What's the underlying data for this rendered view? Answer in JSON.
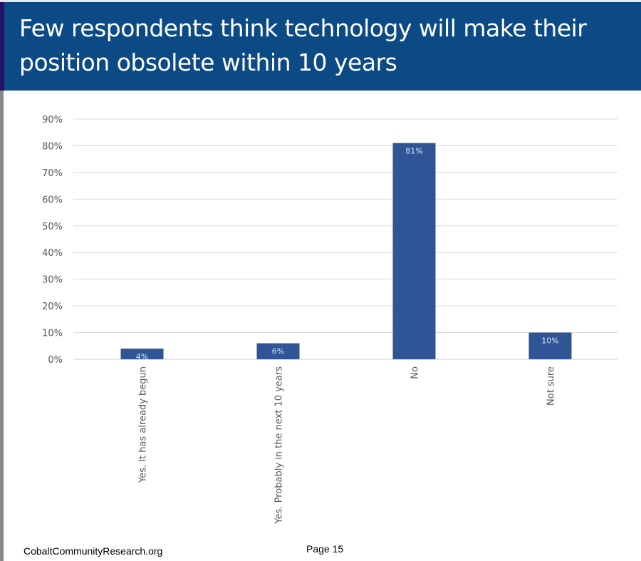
{
  "header": {
    "title": "Few respondents think technology will make their position obsolete within 10 years"
  },
  "footer": {
    "site": "CobaltCommunityResearch.org",
    "page": "Page 15"
  },
  "colors": {
    "header": "#0b4a85",
    "bar": "#2f5597",
    "grid": "#d9d9d9"
  },
  "chart_data": {
    "type": "bar",
    "title": "Few respondents think technology will make their position obsolete within 10 years",
    "categories": [
      "Yes. It has already begun",
      "Yes. Probably in the next 10 years",
      "No",
      "Not sure"
    ],
    "values": [
      4,
      6,
      81,
      10
    ],
    "data_labels": [
      "4%",
      "6%",
      "81%",
      "10%"
    ],
    "ylim": [
      0,
      90
    ],
    "yticks": [
      "0%",
      "10%",
      "20%",
      "30%",
      "40%",
      "50%",
      "60%",
      "70%",
      "80%",
      "90%"
    ],
    "xlabel": "",
    "ylabel": "",
    "grid": true,
    "legend": "none"
  }
}
